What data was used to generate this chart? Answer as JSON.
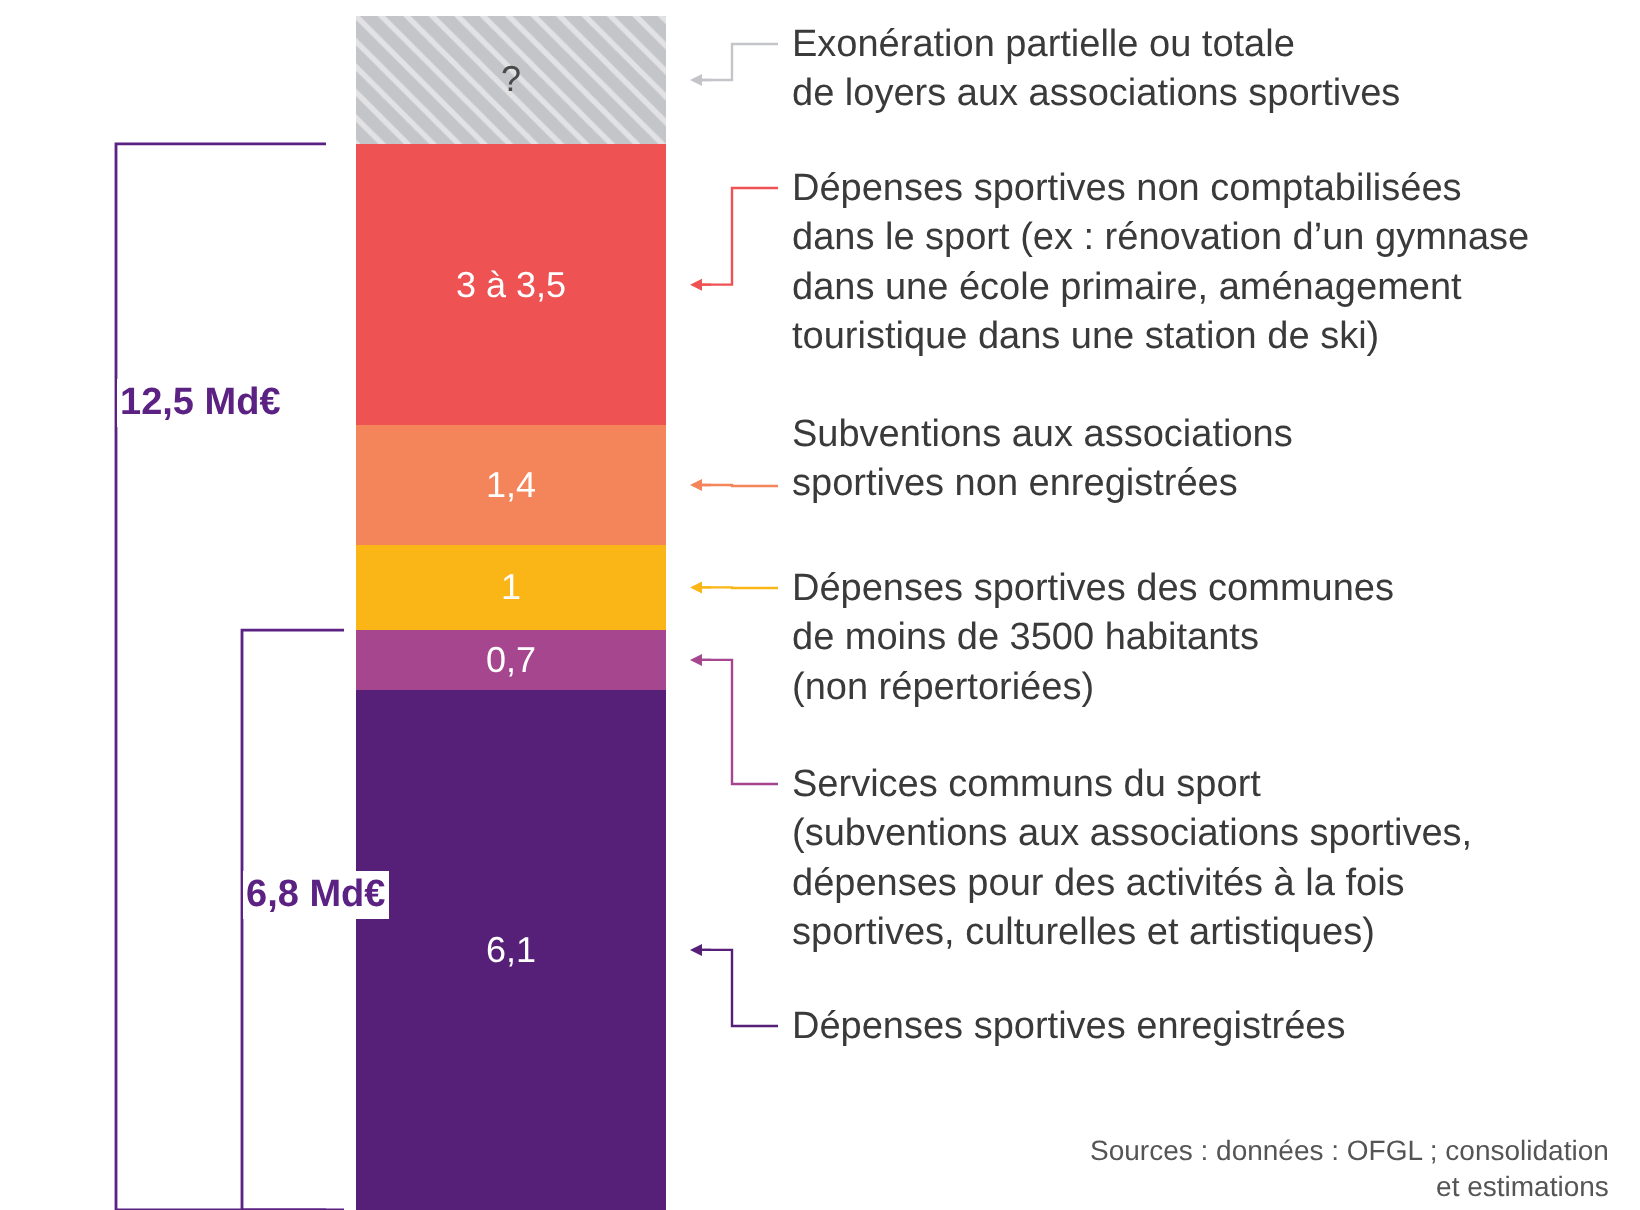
{
  "chart_data": {
    "type": "bar",
    "stacked": true,
    "categories": [
      null
    ],
    "tick_labels": false,
    "legend": "right",
    "series": [
      {
        "name": "Dépenses sportives enregistrées",
        "color": "#561f78",
        "values": [
          6.1
        ],
        "value_labels": [
          "6,1"
        ]
      },
      {
        "name": "Services communs du sport\n(subventions aux associations sportives,\ndépenses pour des activités à la fois\nsportives, culturelles et artistiques)",
        "color": "#a5468e",
        "values": [
          0.7
        ],
        "value_labels": [
          "0,7"
        ]
      },
      {
        "name": "Dépenses sportives des communes\nde moins de 3500 habitants\n(non répertoriées)",
        "color": "#fab617",
        "values": [
          1
        ],
        "value_labels": [
          "1"
        ]
      },
      {
        "name": "Subventions aux associations\nsportives non enregistrées",
        "color": "#f48459",
        "values": [
          1.4
        ],
        "value_labels": [
          "1,4"
        ]
      },
      {
        "name": "Dépenses sportives non comptabilisées\ndans le sport (ex : rénovation d’un gymnase\ndans une école primaire, aménagement\ntouristique dans une station de ski)",
        "color": "#ee5253",
        "values": [
          3.3
        ],
        "value_labels": [
          "3 à 3,5"
        ]
      },
      {
        "name": "Exonération partielle ou totale\nde loyers aux associations sportives",
        "color": "#c4c5c9",
        "values": [
          1.5
        ],
        "value_labels": [
          "?"
        ]
      }
    ],
    "annotations": [
      "12,5 Md€",
      "6,8 Md€",
      "Sources : données : OFGL ; consolidation\net estimations"
    ]
  }
}
